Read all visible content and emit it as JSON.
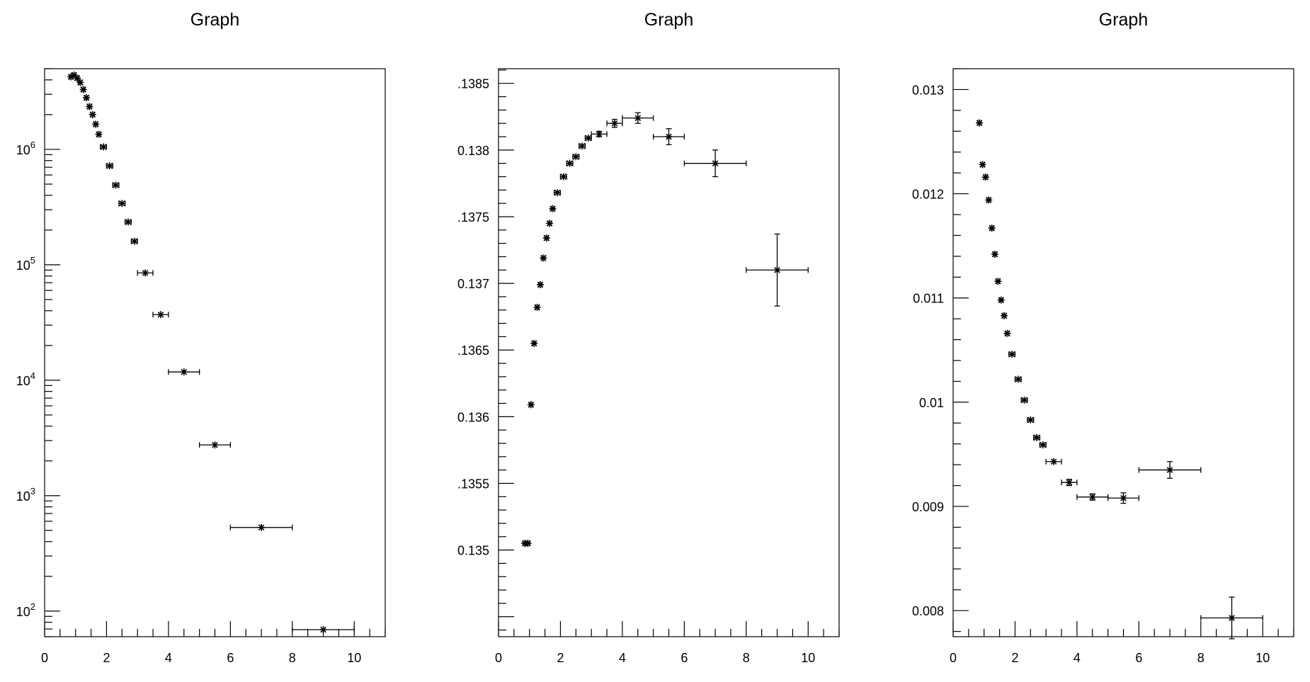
{
  "chart_data": [
    {
      "type": "scatter",
      "title": "Graph",
      "xlabel": "",
      "ylabel": "",
      "xlim": [
        0,
        11
      ],
      "ylim": [
        60,
        5000000
      ],
      "yscale": "log",
      "x_ticks": [
        0,
        2,
        4,
        6,
        8,
        10
      ],
      "y_ticks": [
        {
          "base": "10",
          "exp": "2",
          "value": 100
        },
        {
          "base": "10",
          "exp": "3",
          "value": 1000
        },
        {
          "base": "10",
          "exp": "4",
          "value": 10000
        },
        {
          "base": "10",
          "exp": "5",
          "value": 100000
        },
        {
          "base": "10",
          "exp": "6",
          "value": 1000000
        }
      ],
      "points": [
        {
          "x": 0.85,
          "y": 4250000,
          "xerr": 0.05,
          "yerr": 0
        },
        {
          "x": 0.95,
          "y": 4400000,
          "xerr": 0.05,
          "yerr": 0
        },
        {
          "x": 1.05,
          "y": 4150000,
          "xerr": 0.05,
          "yerr": 0
        },
        {
          "x": 1.15,
          "y": 3800000,
          "xerr": 0.05,
          "yerr": 0
        },
        {
          "x": 1.25,
          "y": 3300000,
          "xerr": 0.05,
          "yerr": 0
        },
        {
          "x": 1.35,
          "y": 2800000,
          "xerr": 0.05,
          "yerr": 0
        },
        {
          "x": 1.45,
          "y": 2350000,
          "xerr": 0.05,
          "yerr": 0
        },
        {
          "x": 1.55,
          "y": 2000000,
          "xerr": 0.05,
          "yerr": 0
        },
        {
          "x": 1.65,
          "y": 1650000,
          "xerr": 0.05,
          "yerr": 0
        },
        {
          "x": 1.75,
          "y": 1350000,
          "xerr": 0.05,
          "yerr": 0
        },
        {
          "x": 1.9,
          "y": 1050000,
          "xerr": 0.1,
          "yerr": 0
        },
        {
          "x": 2.1,
          "y": 720000,
          "xerr": 0.1,
          "yerr": 0
        },
        {
          "x": 2.3,
          "y": 490000,
          "xerr": 0.1,
          "yerr": 0
        },
        {
          "x": 2.5,
          "y": 340000,
          "xerr": 0.1,
          "yerr": 0
        },
        {
          "x": 2.7,
          "y": 235000,
          "xerr": 0.1,
          "yerr": 0
        },
        {
          "x": 2.9,
          "y": 160000,
          "xerr": 0.1,
          "yerr": 0
        },
        {
          "x": 3.25,
          "y": 85000,
          "xerr": 0.25,
          "yerr": 0
        },
        {
          "x": 3.75,
          "y": 37000,
          "xerr": 0.25,
          "yerr": 0
        },
        {
          "x": 4.5,
          "y": 11800,
          "xerr": 0.5,
          "yerr": 0
        },
        {
          "x": 5.5,
          "y": 2750,
          "xerr": 0.5,
          "yerr": 0
        },
        {
          "x": 7.0,
          "y": 530,
          "xerr": 1.0,
          "yerr": 0
        },
        {
          "x": 9.0,
          "y": 69,
          "xerr": 1.0,
          "yerr": 0
        }
      ]
    },
    {
      "type": "scatter",
      "title": "Graph",
      "xlabel": "",
      "ylabel": "",
      "xlim": [
        0,
        11
      ],
      "ylim": [
        0.13435,
        0.13861
      ],
      "yscale": "linear",
      "x_ticks": [
        0,
        2,
        4,
        6,
        8,
        10
      ],
      "y_ticks": [
        {
          "label": "0.135",
          "value": 0.135
        },
        {
          "label": ".1355",
          "value": 0.1355
        },
        {
          "label": "0.136",
          "value": 0.136
        },
        {
          "label": ".1365",
          "value": 0.1365
        },
        {
          "label": "0.137",
          "value": 0.137
        },
        {
          "label": ".1375",
          "value": 0.1375
        },
        {
          "label": "0.138",
          "value": 0.138
        },
        {
          "label": ".1385",
          "value": 0.1385
        }
      ],
      "points": [
        {
          "x": 0.85,
          "y": 0.13505,
          "xerr": 0.05,
          "yerr": 0
        },
        {
          "x": 0.95,
          "y": 0.13505,
          "xerr": 0.05,
          "yerr": 0
        },
        {
          "x": 1.05,
          "y": 0.13609,
          "xerr": 0.05,
          "yerr": 0
        },
        {
          "x": 1.15,
          "y": 0.13655,
          "xerr": 0.05,
          "yerr": 0
        },
        {
          "x": 1.25,
          "y": 0.13682,
          "xerr": 0.05,
          "yerr": 0
        },
        {
          "x": 1.35,
          "y": 0.13699,
          "xerr": 0.05,
          "yerr": 0
        },
        {
          "x": 1.45,
          "y": 0.13719,
          "xerr": 0.05,
          "yerr": 0
        },
        {
          "x": 1.55,
          "y": 0.13734,
          "xerr": 0.05,
          "yerr": 0
        },
        {
          "x": 1.65,
          "y": 0.13745,
          "xerr": 0.05,
          "yerr": 0
        },
        {
          "x": 1.75,
          "y": 0.13756,
          "xerr": 0.05,
          "yerr": 0
        },
        {
          "x": 1.9,
          "y": 0.13768,
          "xerr": 0.1,
          "yerr": 0
        },
        {
          "x": 2.1,
          "y": 0.1378,
          "xerr": 0.1,
          "yerr": 0
        },
        {
          "x": 2.3,
          "y": 0.1379,
          "xerr": 0.1,
          "yerr": 0
        },
        {
          "x": 2.5,
          "y": 0.13795,
          "xerr": 0.1,
          "yerr": 0
        },
        {
          "x": 2.7,
          "y": 0.13803,
          "xerr": 0.1,
          "yerr": 0
        },
        {
          "x": 2.9,
          "y": 0.13809,
          "xerr": 0.1,
          "yerr": 0
        },
        {
          "x": 3.25,
          "y": 0.13812,
          "xerr": 0.25,
          "yerr": 2e-05
        },
        {
          "x": 3.75,
          "y": 0.1382,
          "xerr": 0.25,
          "yerr": 3e-05
        },
        {
          "x": 4.5,
          "y": 0.13824,
          "xerr": 0.5,
          "yerr": 4e-05
        },
        {
          "x": 5.5,
          "y": 0.1381,
          "xerr": 0.5,
          "yerr": 6e-05
        },
        {
          "x": 7.0,
          "y": 0.1379,
          "xerr": 1.0,
          "yerr": 0.0001
        },
        {
          "x": 9.0,
          "y": 0.1371,
          "xerr": 1.0,
          "yerr": 0.00027
        }
      ]
    },
    {
      "type": "scatter",
      "title": "Graph",
      "xlabel": "",
      "ylabel": "",
      "xlim": [
        0,
        11
      ],
      "ylim": [
        0.00775,
        0.0132
      ],
      "yscale": "linear",
      "x_ticks": [
        0,
        2,
        4,
        6,
        8,
        10
      ],
      "y_ticks": [
        {
          "label": "0.008",
          "value": 0.008
        },
        {
          "label": "0.009",
          "value": 0.009
        },
        {
          "label": "0.01",
          "value": 0.01
        },
        {
          "label": "0.011",
          "value": 0.011
        },
        {
          "label": "0.012",
          "value": 0.012
        },
        {
          "label": "0.013",
          "value": 0.013
        }
      ],
      "points": [
        {
          "x": 0.85,
          "y": 0.01268,
          "xerr": 0.05,
          "yerr": 0
        },
        {
          "x": 0.95,
          "y": 0.01228,
          "xerr": 0.05,
          "yerr": 0
        },
        {
          "x": 1.05,
          "y": 0.01216,
          "xerr": 0.05,
          "yerr": 0
        },
        {
          "x": 1.15,
          "y": 0.01194,
          "xerr": 0.05,
          "yerr": 0
        },
        {
          "x": 1.25,
          "y": 0.01167,
          "xerr": 0.05,
          "yerr": 0
        },
        {
          "x": 1.35,
          "y": 0.01142,
          "xerr": 0.05,
          "yerr": 0
        },
        {
          "x": 1.45,
          "y": 0.01116,
          "xerr": 0.05,
          "yerr": 0
        },
        {
          "x": 1.55,
          "y": 0.01098,
          "xerr": 0.05,
          "yerr": 0
        },
        {
          "x": 1.65,
          "y": 0.01083,
          "xerr": 0.05,
          "yerr": 0
        },
        {
          "x": 1.75,
          "y": 0.01066,
          "xerr": 0.05,
          "yerr": 0
        },
        {
          "x": 1.9,
          "y": 0.01046,
          "xerr": 0.1,
          "yerr": 0
        },
        {
          "x": 2.1,
          "y": 0.01022,
          "xerr": 0.1,
          "yerr": 0
        },
        {
          "x": 2.3,
          "y": 0.01002,
          "xerr": 0.1,
          "yerr": 0
        },
        {
          "x": 2.5,
          "y": 0.00983,
          "xerr": 0.1,
          "yerr": 0
        },
        {
          "x": 2.7,
          "y": 0.00966,
          "xerr": 0.1,
          "yerr": 0
        },
        {
          "x": 2.9,
          "y": 0.00959,
          "xerr": 0.1,
          "yerr": 0
        },
        {
          "x": 3.25,
          "y": 0.00943,
          "xerr": 0.25,
          "yerr": 0
        },
        {
          "x": 3.75,
          "y": 0.00923,
          "xerr": 0.25,
          "yerr": 3e-05
        },
        {
          "x": 4.5,
          "y": 0.00909,
          "xerr": 0.5,
          "yerr": 3e-05
        },
        {
          "x": 5.5,
          "y": 0.00908,
          "xerr": 0.5,
          "yerr": 5e-05
        },
        {
          "x": 7.0,
          "y": 0.00935,
          "xerr": 1.0,
          "yerr": 8e-05
        },
        {
          "x": 9.0,
          "y": 0.00793,
          "xerr": 1.0,
          "yerr": 0.0002
        }
      ]
    }
  ]
}
